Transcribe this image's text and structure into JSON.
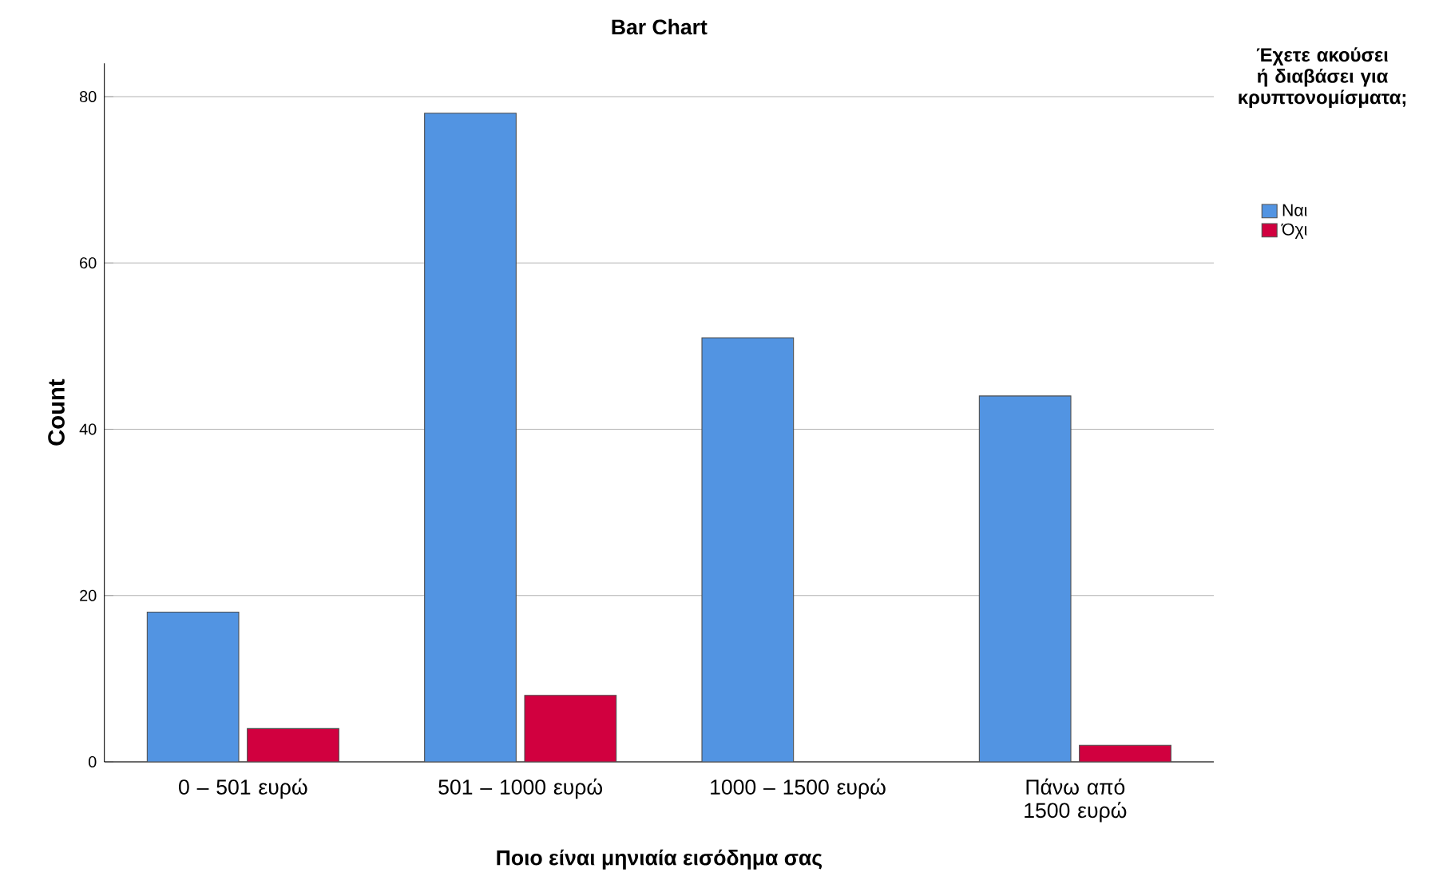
{
  "chart_data": {
    "type": "bar",
    "title": "Bar Chart",
    "xlabel": "Ποιο είναι μηνιαία εισόδημα σας",
    "ylabel": "Count",
    "legend_title": "Έχετε ακούσει ή διαβάσει για κρυπτονομίσματα;",
    "categories": [
      "0 – 501 ευρώ",
      "501 – 1000 ευρώ",
      "1000 – 1500 ευρώ",
      "Πάνω από 1500 ευρώ"
    ],
    "series": [
      {
        "name": "Ναι",
        "color": "#5294e2",
        "values": [
          18,
          78,
          51,
          44
        ]
      },
      {
        "name": "Όχι",
        "color": "#d1003f",
        "values": [
          4,
          8,
          null,
          2
        ]
      }
    ],
    "ylim": [
      0,
      84
    ],
    "yticks": [
      0,
      20,
      40,
      60,
      80
    ],
    "grid": "y",
    "legend": "right"
  }
}
